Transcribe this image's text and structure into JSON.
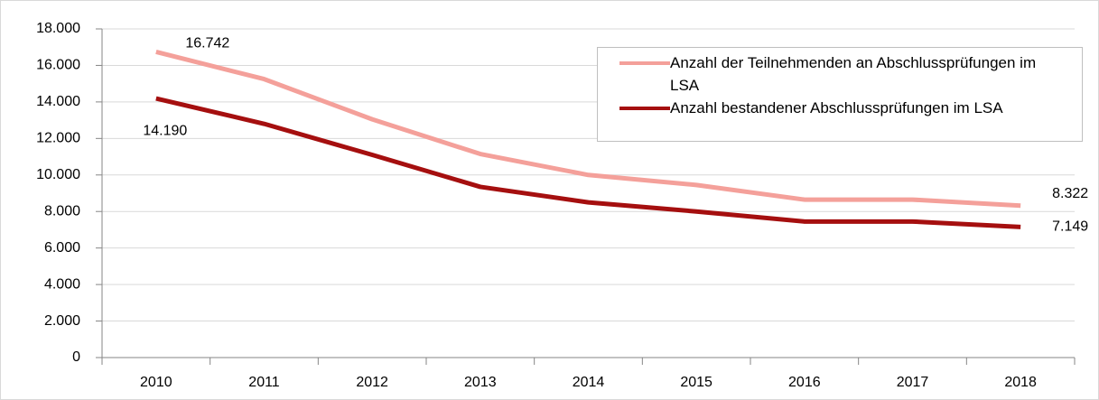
{
  "chart_data": {
    "type": "line",
    "categories": [
      "2010",
      "2011",
      "2012",
      "2013",
      "2014",
      "2015",
      "2016",
      "2017",
      "2018"
    ],
    "series": [
      {
        "name": "Anzahl der Teilnehmenden an Abschlussprüfungen im LSA",
        "color": "#f4a09a",
        "values": [
          16742,
          15250,
          13050,
          11150,
          10000,
          9450,
          8650,
          8650,
          8322
        ],
        "value_labels": [
          "16.742",
          null,
          null,
          null,
          null,
          null,
          null,
          null,
          "8.322"
        ]
      },
      {
        "name": "Anzahl bestandener Abschlussprüfungen im LSA",
        "color": "#a50f0f",
        "values": [
          14190,
          12800,
          11100,
          9350,
          8500,
          8000,
          7450,
          7450,
          7149
        ],
        "value_labels": [
          "14.190",
          null,
          null,
          null,
          null,
          null,
          null,
          null,
          "7.149"
        ]
      }
    ],
    "ylim": [
      0,
      18000
    ],
    "yticks": [
      0,
      {
        "value": 2000,
        "label": "2.000"
      },
      {
        "value": 4000,
        "label": "4.000"
      },
      {
        "value": 6000,
        "label": "6.000"
      },
      {
        "value": 8000,
        "label": "8.000"
      },
      {
        "value": 10000,
        "label": "10.000"
      },
      {
        "value": 12000,
        "label": "12.000"
      },
      {
        "value": 14000,
        "label": "14.000"
      },
      {
        "value": 16000,
        "label": "16.000"
      },
      {
        "value": 18000,
        "label": "18.000"
      }
    ],
    "grid": true,
    "legend": "upper right"
  }
}
